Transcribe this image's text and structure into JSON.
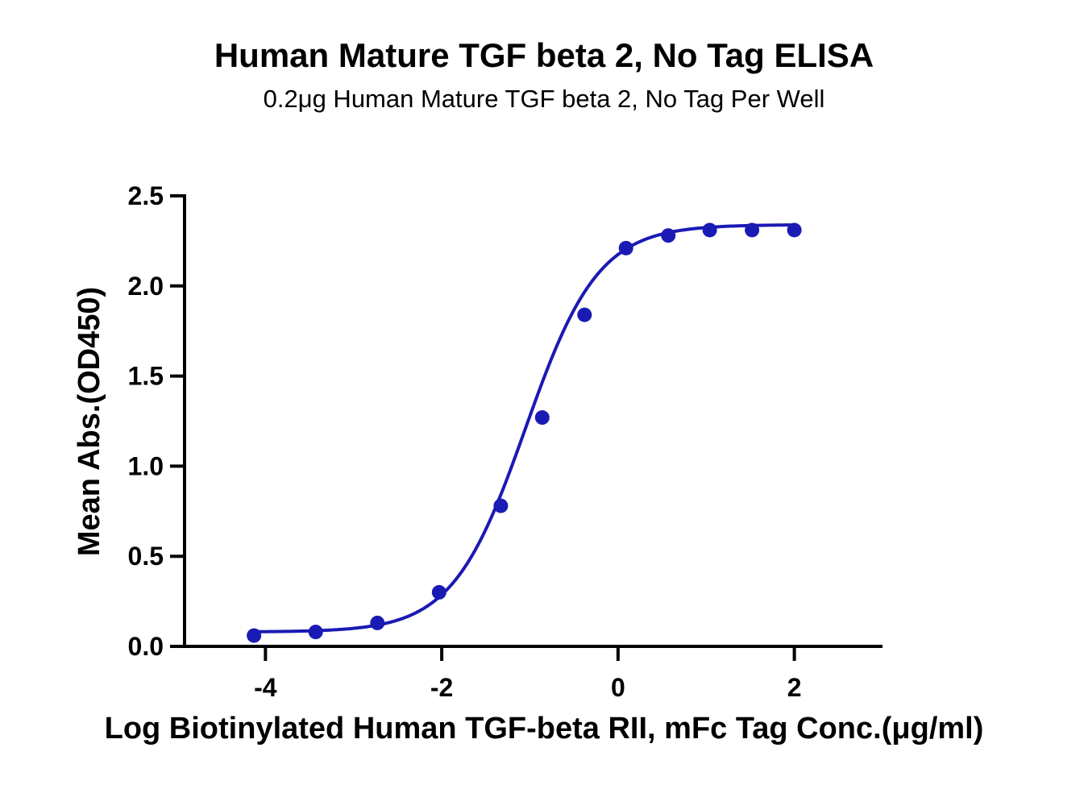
{
  "colors": {
    "series": "#1a1ab4",
    "axis": "#000000",
    "text": "#000000"
  },
  "chart_data": {
    "type": "scatter",
    "title": "Human Mature TGF beta 2, No Tag ELISA",
    "subtitle": "0.2μg Human Mature TGF beta 2, No Tag Per Well",
    "xlabel": "Log Biotinylated Human TGF-beta RII, mFc Tag Conc.(μg/ml)",
    "ylabel": "Mean Abs.(OD450)",
    "xlim": [
      -5,
      3
    ],
    "ylim": [
      0,
      2.5
    ],
    "x_ticks": [
      -4,
      -2,
      0,
      2
    ],
    "x_tick_labels": [
      "-4",
      "-2",
      "0",
      "2"
    ],
    "y_ticks": [
      0,
      0.5,
      1,
      1.5,
      2,
      2.5
    ],
    "y_tick_labels": [
      "0.0",
      "0.5",
      "1.0",
      "1.5",
      "2.0",
      "2.5"
    ],
    "grid": false,
    "legend": "none",
    "series": [
      {
        "x": [
          -4.13,
          -3.43,
          -2.73,
          -2.03,
          -1.33,
          -0.86,
          -0.38,
          0.09,
          0.57,
          1.04,
          1.52,
          2.0
        ],
        "y": [
          0.06,
          0.08,
          0.13,
          0.3,
          0.78,
          1.27,
          1.84,
          2.21,
          2.28,
          2.31,
          2.31,
          2.31
        ],
        "fit": {
          "model": "4PL",
          "bottom": 0.08,
          "top": 2.34,
          "log_ec50": -1.05,
          "hill_slope": 1.05,
          "x_range": [
            -4.13,
            2.0
          ]
        }
      }
    ]
  }
}
